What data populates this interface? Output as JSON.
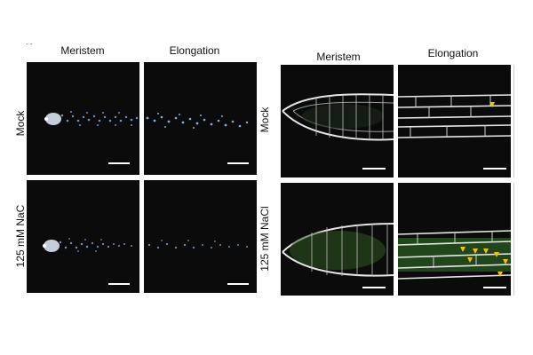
{
  "left_figure": {
    "columns": [
      "Meristem",
      "Elongation"
    ],
    "rows": [
      "Mock",
      "125 mM NaC"
    ]
  },
  "right_figure": {
    "columns": [
      "Meristem",
      "Elongation"
    ],
    "rows": [
      "Mock",
      "125 mM NaCl"
    ]
  },
  "colors": {
    "panel_background": "#0b0b0b",
    "nuclei_dots": "#6f9bd8",
    "cell_walls": "#e6e6e6",
    "green_signal": "#3f8f2f",
    "arrowheads": "#f2c200",
    "scale_bar": "#ffffff"
  }
}
